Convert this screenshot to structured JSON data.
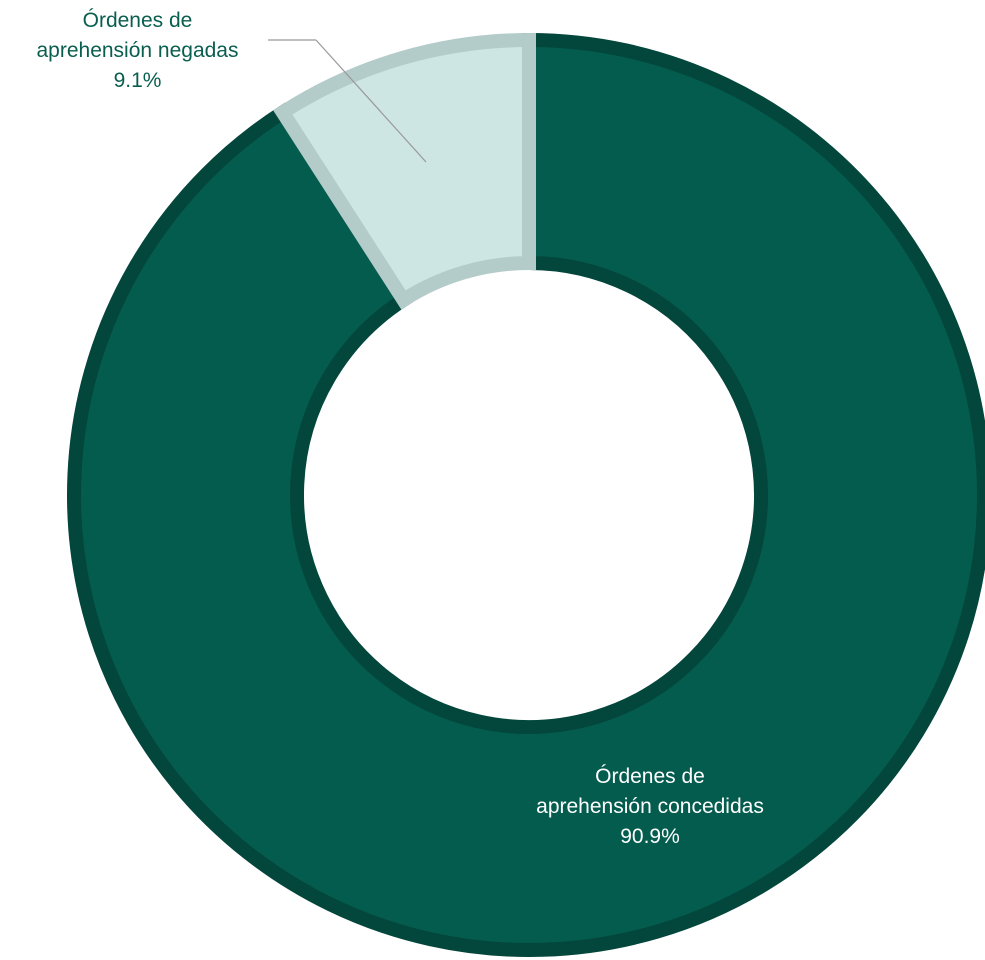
{
  "chart_data": {
    "type": "pie",
    "variant": "donut",
    "categories": [
      "Órdenes de aprehensión concedidas",
      "Órdenes de aprehensión negadas"
    ],
    "values": [
      90.9,
      9.1
    ],
    "unit": "%",
    "colors": [
      "#045c4e",
      "#cde6e3"
    ],
    "stroke_colors": [
      "#03463c",
      "#b4ccc9"
    ],
    "labels": {
      "concedidas": {
        "line1": "Órdenes de",
        "line2": "aprehensión concedidas",
        "value": "90.9%"
      },
      "negadas": {
        "line1": "Órdenes de",
        "line2": "aprehensión negadas",
        "value": "9.1%"
      }
    }
  }
}
